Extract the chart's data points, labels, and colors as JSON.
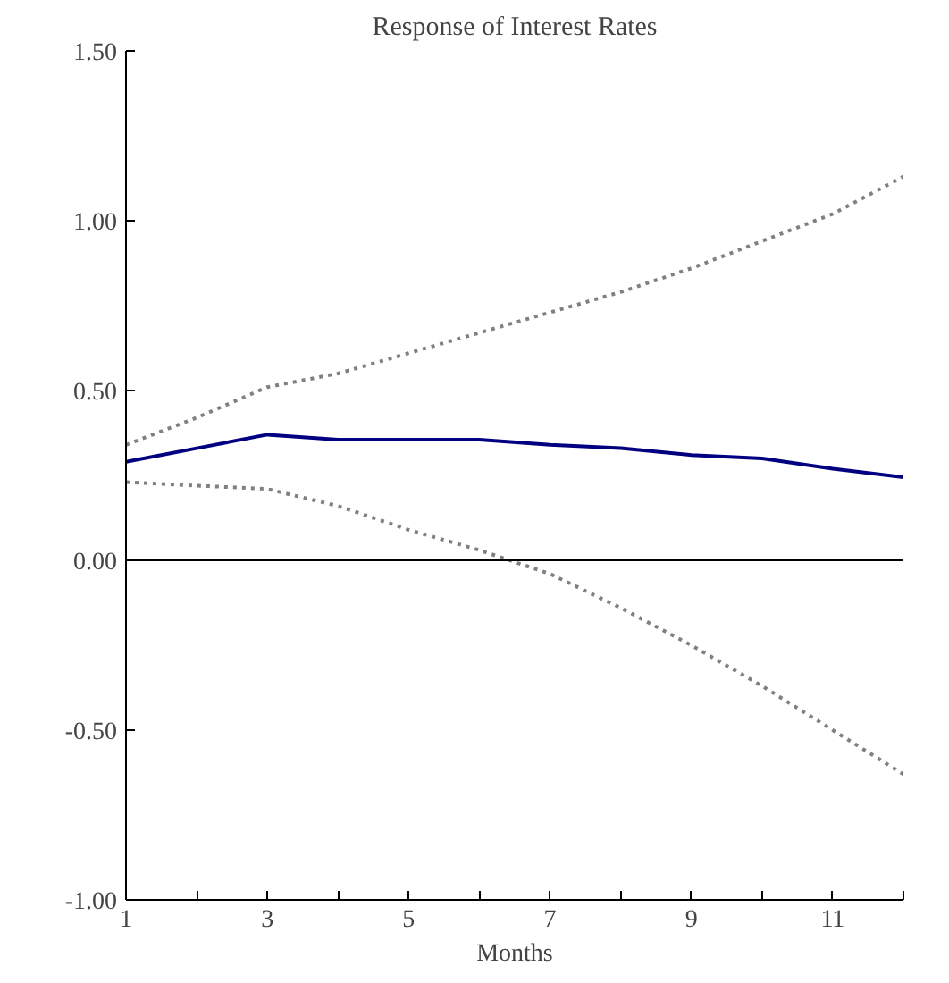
{
  "chart_data": {
    "type": "line",
    "title": "Response of Interest Rates",
    "xlabel": "Months",
    "x": [
      1,
      2,
      3,
      4,
      5,
      6,
      7,
      8,
      9,
      10,
      11,
      12
    ],
    "series": [
      {
        "color": "#000080",
        "line_style": "solid",
        "values": [
          0.29,
          0.33,
          0.37,
          0.355,
          0.355,
          0.355,
          0.34,
          0.33,
          0.31,
          0.3,
          0.27,
          0.245
        ]
      },
      {
        "color": "#808080",
        "line_style": "dotted",
        "values": [
          0.34,
          0.42,
          0.51,
          0.55,
          0.61,
          0.67,
          0.73,
          0.79,
          0.86,
          0.94,
          1.02,
          1.13
        ]
      },
      {
        "color": "#808080",
        "line_style": "dotted",
        "values": [
          0.23,
          0.22,
          0.21,
          0.16,
          0.09,
          0.03,
          -0.04,
          -0.14,
          -0.25,
          -0.37,
          -0.5,
          -0.63
        ]
      }
    ],
    "xlim": [
      1,
      12
    ],
    "xticks": [
      1,
      {
        "value": 2,
        "label": null
      },
      3,
      {
        "value": 4,
        "label": null
      },
      5,
      {
        "value": 6,
        "label": null
      },
      7,
      {
        "value": 8,
        "label": null
      },
      9,
      {
        "value": 10,
        "label": null
      },
      11,
      {
        "value": 12,
        "label": null
      }
    ],
    "ylim": [
      -1,
      1.5
    ],
    "yticks": [
      {
        "value": -1,
        "label": "-1.00"
      },
      {
        "value": -0.5,
        "label": "-0.50"
      },
      {
        "value": 0,
        "label": "0.00"
      },
      {
        "value": 0.5,
        "label": "0.50"
      },
      {
        "value": 1,
        "label": "1.00"
      },
      {
        "value": 1.5,
        "label": "1.50"
      }
    ],
    "ref_lines": [
      {
        "axis": "y",
        "value": 0,
        "label": null,
        "color": "#000000"
      }
    ],
    "grid": false,
    "marker": "none"
  }
}
